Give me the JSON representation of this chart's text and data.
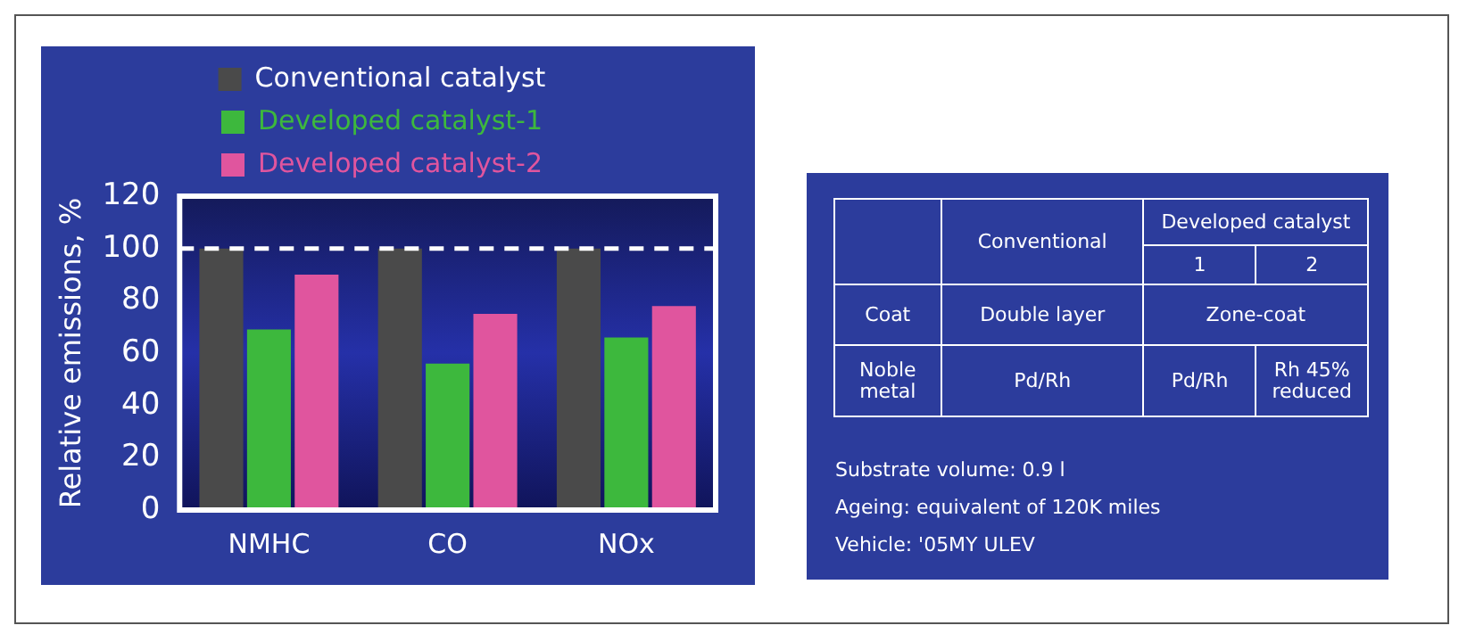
{
  "chart_data": [
    {
      "type": "bar",
      "ylabel": "Relative emissions, %",
      "categories": [
        "NMHC",
        "CO",
        "NOx"
      ],
      "series": [
        {
          "name": "Conventional catalyst",
          "color": "#4a4a4a",
          "values": [
            100,
            100,
            100
          ]
        },
        {
          "name": "Developed catalyst-1",
          "color": "#3db83d",
          "values": [
            69,
            56,
            66
          ]
        },
        {
          "name": "Developed catalyst-2",
          "color": "#e0559e",
          "values": [
            90,
            75,
            78
          ]
        }
      ],
      "ylim": [
        0,
        120
      ],
      "yticks": [
        0,
        20,
        40,
        60,
        80,
        100,
        120
      ],
      "grid": false,
      "legend": "top",
      "ref_lines": [
        {
          "axis": "y",
          "value": 100,
          "color": "#ffffff",
          "line_style": "dashed"
        }
      ]
    },
    {
      "type": "other",
      "annotations": [
        "Conventional",
        "Developed catalyst",
        "1",
        "2",
        "Coat",
        "Double layer",
        "Zone-coat",
        "Noble metal",
        "Pd/Rh",
        "Pd/Rh",
        "Rh 45% reduced",
        "Substrate volume: 0.9 l",
        "Ageing: equivalent of 120K miles",
        "Vehicle: '05MY ULEV"
      ]
    }
  ]
}
